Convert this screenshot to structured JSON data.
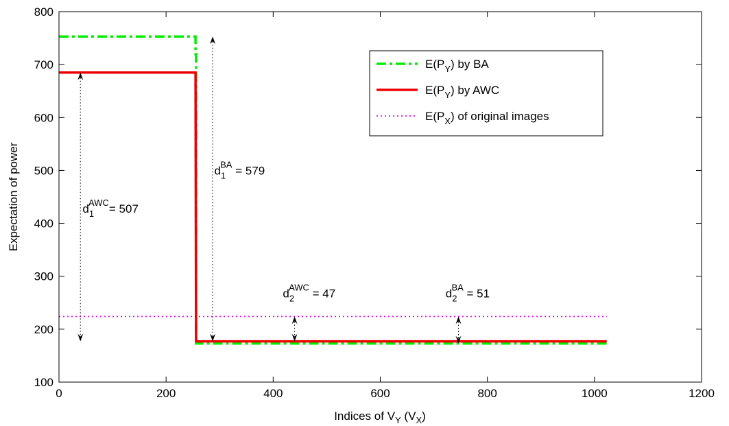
{
  "chart_data": {
    "type": "line",
    "xlabel": {
      "main": "Indices of V",
      "sub1": "Y",
      "mid": " (V",
      "sub2": "X",
      "end": ")"
    },
    "ylabel": "Expectation of power",
    "xlim": [
      0,
      1200
    ],
    "ylim": [
      100,
      800
    ],
    "xticks": [
      0,
      200,
      400,
      600,
      800,
      1000,
      1200
    ],
    "yticks": [
      100,
      200,
      300,
      400,
      500,
      600,
      700,
      800
    ],
    "xtick_labels": [
      "0",
      "200",
      "400",
      "600",
      "800",
      "1000",
      "1200"
    ],
    "ytick_labels": [
      "100",
      "200",
      "300",
      "400",
      "500",
      "600",
      "700",
      "800"
    ],
    "grid": false,
    "legend_position": "top-right",
    "series": [
      {
        "id": "ba",
        "legend": {
          "pre": "E(P",
          "sub": "Y",
          "post": ") by BA"
        },
        "color": "#00ee00",
        "style": "dash-dot",
        "x": [
          0,
          255,
          255,
          256,
          256,
          1023
        ],
        "y": [
          753,
          753,
          720,
          720,
          173,
          173
        ]
      },
      {
        "id": "awc",
        "legend": {
          "pre": "E(P",
          "sub": "Y",
          "post": ") by AWC"
        },
        "color": "#ee0000",
        "style": "solid",
        "x": [
          0,
          255,
          256,
          1023
        ],
        "y": [
          685,
          685,
          177,
          177
        ]
      },
      {
        "id": "orig",
        "legend": {
          "pre": "E(P",
          "sub": "X",
          "post": ") of original images"
        },
        "color": "#ee00ee",
        "style": "dotted",
        "x": [
          0,
          1023
        ],
        "y": [
          224,
          224
        ]
      }
    ],
    "annotations": [
      {
        "id": "d1-awc",
        "x": 40,
        "y_from": 685,
        "y_to": 177,
        "label": {
          "main": "d",
          "sub": "1",
          "sup": "AWC",
          "rest": "= 507"
        },
        "label_x": 44,
        "label_y": 420,
        "sup_gap": 0
      },
      {
        "id": "d1-ba",
        "x": 287,
        "y_from": 753,
        "y_to": 177,
        "label": {
          "main": "d",
          "sub": "1",
          "sup": "BA",
          "rest": " = 579"
        },
        "label_x": 290,
        "label_y": 492,
        "sup_gap": 0
      },
      {
        "id": "d2-awc",
        "x": 440,
        "y_from": 224,
        "y_to": 177,
        "label": {
          "main": "d",
          "sub": "2",
          "sup": "AWC",
          "rest": " = 47"
        },
        "label_x": 418,
        "label_y": 260,
        "sup_gap": 0
      },
      {
        "id": "d2-ba",
        "x": 746,
        "y_from": 224,
        "y_to": 173,
        "label": {
          "main": "d",
          "sub": "2",
          "sup": "BA",
          "rest": " = 51"
        },
        "label_x": 722,
        "label_y": 260,
        "sup_gap": 0
      }
    ]
  }
}
